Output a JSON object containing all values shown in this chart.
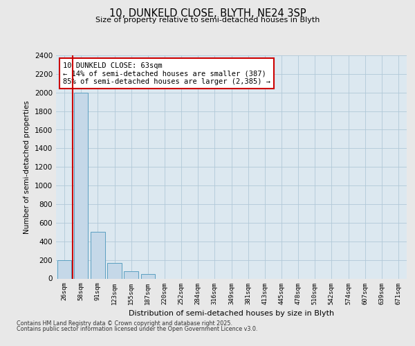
{
  "title_line1": "10, DUNKELD CLOSE, BLYTH, NE24 3SP",
  "title_line2": "Size of property relative to semi-detached houses in Blyth",
  "xlabel": "Distribution of semi-detached houses by size in Blyth",
  "ylabel": "Number of semi-detached properties",
  "annotation_title": "10 DUNKELD CLOSE: 63sqm",
  "annotation_line2": "← 14% of semi-detached houses are smaller (387)",
  "annotation_line3": "85% of semi-detached houses are larger (2,385) →",
  "footer_line1": "Contains HM Land Registry data © Crown copyright and database right 2025.",
  "footer_line2": "Contains public sector information licensed under the Open Government Licence v3.0.",
  "categories": [
    "26sqm",
    "58sqm",
    "91sqm",
    "123sqm",
    "155sqm",
    "187sqm",
    "220sqm",
    "252sqm",
    "284sqm",
    "316sqm",
    "349sqm",
    "381sqm",
    "413sqm",
    "445sqm",
    "478sqm",
    "510sqm",
    "542sqm",
    "574sqm",
    "607sqm",
    "639sqm",
    "671sqm"
  ],
  "values": [
    200,
    2000,
    500,
    170,
    80,
    50,
    0,
    0,
    0,
    0,
    0,
    0,
    0,
    0,
    0,
    0,
    0,
    0,
    0,
    0,
    0
  ],
  "highlight_index": 1,
  "bar_color": "#c5d8e8",
  "bar_edge_color": "#5a9fc0",
  "marker_line_color": "#cc0000",
  "annotation_box_color": "#cc0000",
  "ylim": [
    0,
    2400
  ],
  "yticks": [
    0,
    200,
    400,
    600,
    800,
    1000,
    1200,
    1400,
    1600,
    1800,
    2000,
    2200,
    2400
  ],
  "background_color": "#e8e8e8",
  "plot_bg_color": "#dce8f0",
  "grid_color": "#b0c8d8"
}
